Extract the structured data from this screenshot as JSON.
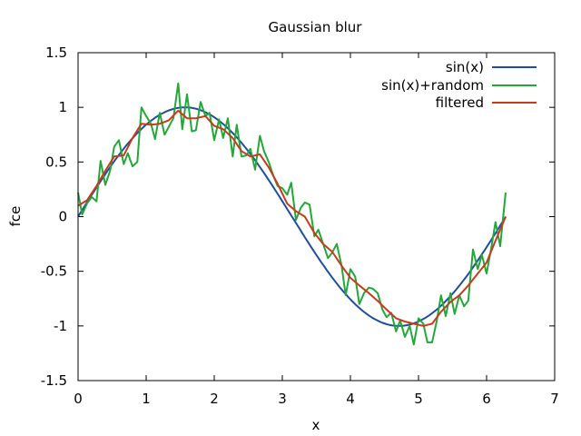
{
  "chart_data": {
    "type": "line",
    "title": "Gaussian blur",
    "xlabel": "x",
    "ylabel": "fce",
    "xlim": [
      0,
      7
    ],
    "ylim": [
      -1.5,
      1.5
    ],
    "x_ticks": [
      0,
      1,
      2,
      3,
      4,
      5,
      6,
      7
    ],
    "y_ticks": [
      -1.5,
      -1,
      -0.5,
      0,
      0.5,
      1,
      1.5
    ],
    "x_tick_labels": [
      "0",
      "1",
      "2",
      "3",
      "4",
      "5",
      "6",
      "7"
    ],
    "y_tick_labels": [
      "-1.5",
      "-1",
      "-0.5",
      "0",
      "0.5",
      "1",
      "1.5"
    ],
    "grid": false,
    "legend_position": "top-right",
    "series": [
      {
        "name": "sin(x)",
        "color": "#1f4e9e",
        "x": [
          0,
          0.5,
          1.0,
          1.5708,
          2.0,
          2.5,
          3.0,
          3.5,
          4.0,
          4.7124,
          5.0,
          5.5,
          6.0,
          6.2832
        ],
        "y": [
          0,
          0.479,
          0.841,
          1.0,
          0.909,
          0.598,
          0.141,
          -0.351,
          -0.757,
          -1.0,
          -0.959,
          -0.706,
          -0.279,
          0
        ]
      },
      {
        "name": "sin(x)+random",
        "color": "#22a83a",
        "x": [
          0,
          0.06,
          0.13,
          0.2,
          0.27,
          0.33,
          0.4,
          0.47,
          0.53,
          0.6,
          0.67,
          0.73,
          0.8,
          0.87,
          0.93,
          1.0,
          1.07,
          1.13,
          1.2,
          1.27,
          1.33,
          1.4,
          1.47,
          1.53,
          1.6,
          1.67,
          1.73,
          1.8,
          1.87,
          1.93,
          2.0,
          2.07,
          2.13,
          2.2,
          2.27,
          2.33,
          2.4,
          2.47,
          2.53,
          2.6,
          2.67,
          2.73,
          2.8,
          2.87,
          2.93,
          3.0,
          3.07,
          3.13,
          3.2,
          3.27,
          3.33,
          3.4,
          3.47,
          3.53,
          3.6,
          3.67,
          3.73,
          3.8,
          3.87,
          3.93,
          4.0,
          4.07,
          4.13,
          4.2,
          4.27,
          4.33,
          4.4,
          4.47,
          4.53,
          4.6,
          4.67,
          4.73,
          4.8,
          4.87,
          4.93,
          5.0,
          5.07,
          5.13,
          5.2,
          5.27,
          5.33,
          5.4,
          5.47,
          5.53,
          5.6,
          5.67,
          5.73,
          5.8,
          5.87,
          5.93,
          6.0,
          6.07,
          6.13,
          6.2,
          6.28
        ],
        "y": [
          0.22,
          0.02,
          0.12,
          0.18,
          0.14,
          0.51,
          0.29,
          0.42,
          0.64,
          0.7,
          0.48,
          0.58,
          0.46,
          0.5,
          1.0,
          0.92,
          0.85,
          0.71,
          0.95,
          0.75,
          0.82,
          0.9,
          1.22,
          0.8,
          1.12,
          0.78,
          0.79,
          1.05,
          0.92,
          0.95,
          0.7,
          0.89,
          0.72,
          0.9,
          0.55,
          0.84,
          0.55,
          0.56,
          0.62,
          0.43,
          0.74,
          0.6,
          0.5,
          0.37,
          0.28,
          0.26,
          0.2,
          0.31,
          -0.03,
          0.08,
          0.13,
          0.11,
          -0.18,
          -0.12,
          -0.25,
          -0.38,
          -0.33,
          -0.25,
          -0.45,
          -0.72,
          -0.48,
          -0.55,
          -0.8,
          -0.7,
          -0.65,
          -0.66,
          -0.7,
          -0.85,
          -0.92,
          -0.88,
          -1.05,
          -0.95,
          -1.1,
          -1.0,
          -1.17,
          -0.93,
          -0.98,
          -1.15,
          -1.15,
          -0.95,
          -0.72,
          -0.91,
          -0.7,
          -0.89,
          -0.72,
          -0.82,
          -0.77,
          -0.3,
          -0.48,
          -0.35,
          -0.52,
          -0.28,
          -0.05,
          -0.27,
          0.22
        ]
      },
      {
        "name": "filtered",
        "color": "#c83a1e",
        "x": [
          0,
          0.13,
          0.27,
          0.4,
          0.53,
          0.67,
          0.8,
          0.93,
          1.07,
          1.2,
          1.33,
          1.47,
          1.6,
          1.73,
          1.87,
          2.0,
          2.13,
          2.27,
          2.4,
          2.53,
          2.67,
          2.8,
          2.93,
          3.07,
          3.2,
          3.33,
          3.47,
          3.6,
          3.73,
          3.87,
          4.0,
          4.13,
          4.27,
          4.4,
          4.53,
          4.67,
          4.8,
          4.93,
          5.07,
          5.2,
          5.33,
          5.47,
          5.6,
          5.73,
          5.87,
          6.0,
          6.13,
          6.28
        ],
        "y": [
          0.1,
          0.15,
          0.28,
          0.42,
          0.55,
          0.56,
          0.72,
          0.85,
          0.84,
          0.85,
          0.88,
          0.97,
          0.9,
          0.9,
          0.92,
          0.83,
          0.8,
          0.72,
          0.6,
          0.55,
          0.57,
          0.45,
          0.3,
          0.12,
          0.05,
          0.0,
          -0.15,
          -0.25,
          -0.32,
          -0.45,
          -0.56,
          -0.63,
          -0.7,
          -0.77,
          -0.85,
          -0.93,
          -0.96,
          -0.98,
          -1.0,
          -0.98,
          -0.87,
          -0.78,
          -0.72,
          -0.63,
          -0.52,
          -0.42,
          -0.22,
          0.0
        ]
      }
    ]
  }
}
